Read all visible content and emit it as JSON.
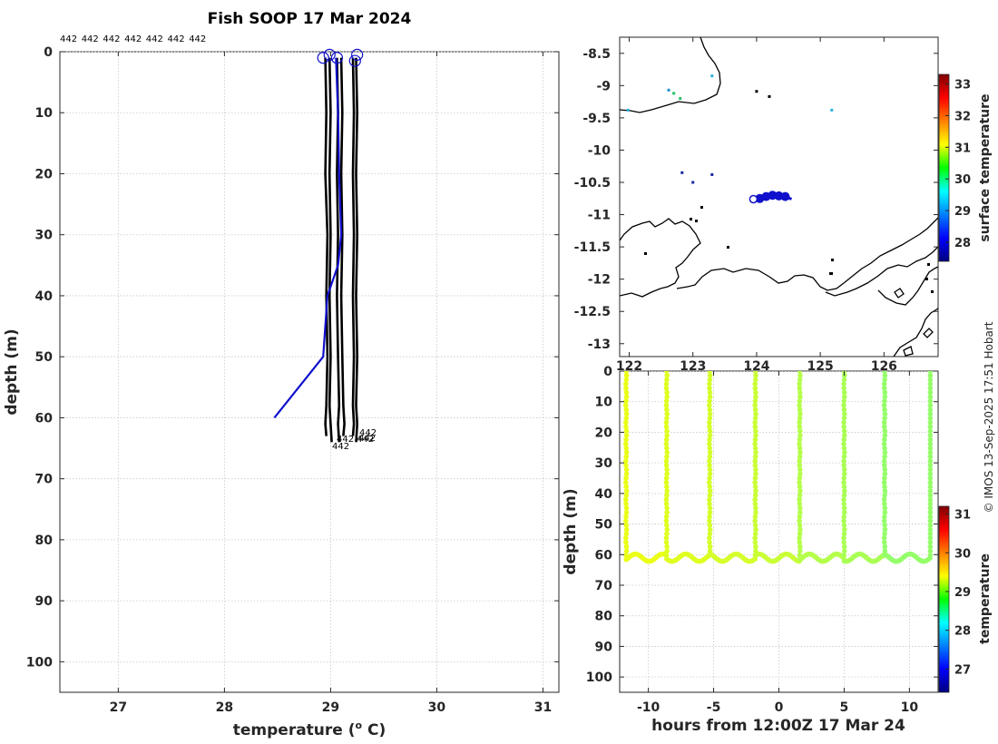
{
  "chart_data": [
    {
      "type": "line",
      "title": "Fish SOOP 17 Mar 2024",
      "xlabel": "temperature (",
      "xlabel_sup": "o",
      "xlabel_end": " C)",
      "ylabel": "depth (m)",
      "xlim": [
        26.45,
        31.15
      ],
      "ylim": [
        105,
        0
      ],
      "xticks": [
        27,
        28,
        29,
        30,
        31
      ],
      "yticks": [
        0,
        10,
        20,
        30,
        40,
        50,
        60,
        70,
        80,
        90,
        100
      ],
      "grid": true,
      "top_labels": [
        "442",
        "442",
        "442",
        "442",
        "442",
        "442",
        "442"
      ],
      "bottom_labels": [
        "442",
        "442",
        "442",
        "442",
        "442"
      ],
      "series": [
        {
          "color": "#000000",
          "x": [
            28.95,
            28.96,
            28.95,
            28.97,
            28.96,
            28.97,
            28.96,
            28.95,
            28.96
          ],
          "y": [
            1,
            10,
            20,
            30,
            40,
            50,
            58,
            61,
            63
          ]
        },
        {
          "color": "#000000",
          "x": [
            28.99,
            29.0,
            28.99,
            29.0,
            28.99,
            29.0,
            28.99,
            29.0,
            29.01
          ],
          "y": [
            1,
            10,
            20,
            30,
            40,
            50,
            58,
            61,
            64
          ]
        },
        {
          "color": "#000000",
          "x": [
            29.06,
            29.07,
            29.06,
            29.07,
            29.06,
            29.07,
            29.08,
            29.07,
            29.08
          ],
          "y": [
            1,
            10,
            20,
            30,
            40,
            50,
            58,
            61,
            64
          ]
        },
        {
          "color": "#000000",
          "x": [
            29.1,
            29.11,
            29.1,
            29.11,
            29.1,
            29.11,
            29.12,
            29.13,
            29.12
          ],
          "y": [
            1,
            10,
            20,
            30,
            40,
            50,
            58,
            61,
            63
          ]
        },
        {
          "color": "#000000",
          "x": [
            29.21,
            29.22,
            29.21,
            29.22,
            29.21,
            29.22,
            29.21,
            29.22,
            29.21
          ],
          "y": [
            1,
            10,
            20,
            30,
            40,
            50,
            58,
            61,
            63
          ]
        },
        {
          "color": "#000000",
          "x": [
            29.24,
            29.25,
            29.24,
            29.25,
            29.24,
            29.25,
            29.24,
            29.25,
            29.24
          ],
          "y": [
            1,
            10,
            20,
            30,
            40,
            50,
            58,
            61,
            64
          ]
        },
        {
          "color": "#1010cc",
          "x": [
            29.05,
            29.07,
            29.08,
            29.1,
            29.07,
            28.97,
            28.93,
            28.47
          ],
          "y": [
            1,
            10,
            20,
            30,
            35,
            40,
            50,
            60
          ]
        }
      ],
      "markers": {
        "type": "circle",
        "color": "#1010cc",
        "x": [
          28.93,
          28.99,
          29.06,
          29.23,
          29.25
        ],
        "y": [
          1,
          0.5,
          1,
          1.5,
          0.5
        ]
      }
    },
    {
      "type": "map",
      "xlim": [
        121.85,
        126.85
      ],
      "ylim": [
        -13.2,
        -8.25
      ],
      "xticks": [
        122,
        123,
        124,
        125,
        126
      ],
      "yticks": [
        -8.5,
        -9,
        -9.5,
        -10,
        -10.5,
        -11,
        -11.5,
        -12,
        -12.5,
        -13
      ],
      "xtick_labels": [
        "122",
        "123",
        "124",
        "125",
        "126"
      ],
      "ytick_labels": [
        "-8.5",
        "-9",
        "-9.5",
        "-10",
        "-10.5",
        "-11",
        "-11.5",
        "-12",
        "-12.5",
        "-13"
      ],
      "colorbar": {
        "label": "surface temperature",
        "range": [
          27.4,
          33.3
        ],
        "ticks": [
          "28",
          "29",
          "30",
          "31",
          "32",
          "33"
        ]
      },
      "track": {
        "color": "#1010cc",
        "lon": [
          123.95,
          124.05,
          124.15,
          124.25,
          124.35,
          124.45,
          124.55
        ],
        "lat": [
          -10.76,
          -10.75,
          -10.72,
          -10.7,
          -10.71,
          -10.72,
          -10.76
        ]
      },
      "obs": [
        {
          "lon": 122.62,
          "lat": -9.07,
          "color": "#1f8fd0"
        },
        {
          "lon": 122.7,
          "lat": -9.12,
          "color": "#22c060"
        },
        {
          "lon": 122.8,
          "lat": -9.2,
          "color": "#22c060"
        },
        {
          "lon": 122.83,
          "lat": -10.35,
          "color": "#142aa0"
        },
        {
          "lon": 123.0,
          "lat": -10.5,
          "color": "#142aa0"
        },
        {
          "lon": 123.3,
          "lat": -10.38,
          "color": "#142aa0"
        },
        {
          "lon": 124.0,
          "lat": -9.09,
          "color": "#000000"
        },
        {
          "lon": 124.2,
          "lat": -9.17,
          "color": "#000000"
        },
        {
          "lon": 125.18,
          "lat": -9.38,
          "color": "#29b0e0"
        },
        {
          "lon": 121.98,
          "lat": -9.38,
          "color": "#29b0e0"
        },
        {
          "lon": 123.3,
          "lat": -8.85,
          "color": "#29b0e0"
        }
      ]
    },
    {
      "type": "scatter",
      "xlabel": "hours from 12:00Z 17 Mar 24",
      "ylabel": "depth (m)",
      "xlim": [
        -12.2,
        12.2
      ],
      "ylim": [
        105,
        0
      ],
      "xticks": [
        -10,
        -5,
        0,
        5,
        10
      ],
      "yticks": [
        0,
        10,
        20,
        30,
        40,
        50,
        60,
        70,
        80,
        90,
        100
      ],
      "colorbar": {
        "label": "temperature",
        "range": [
          26.4,
          31.2
        ],
        "ticks": [
          "27",
          "28",
          "29",
          "30",
          "31"
        ]
      },
      "profiles": [
        {
          "t0": -11.7,
          "t1": -8.6,
          "temp": 29.3
        },
        {
          "t0": -8.6,
          "t1": -5.3,
          "temp": 29.25
        },
        {
          "t0": -5.3,
          "t1": -1.8,
          "temp": 29.2
        },
        {
          "t0": -1.8,
          "t1": 1.6,
          "temp": 29.15
        },
        {
          "t0": 1.6,
          "t1": 5.0,
          "temp": 29.05
        },
        {
          "t0": 5.0,
          "t1": 8.1,
          "temp": 29.0
        },
        {
          "t0": 8.1,
          "t1": 11.6,
          "temp": 28.9
        }
      ]
    }
  ],
  "credit": "© IMOS 13-Sep-2025 17:51 Hobart"
}
